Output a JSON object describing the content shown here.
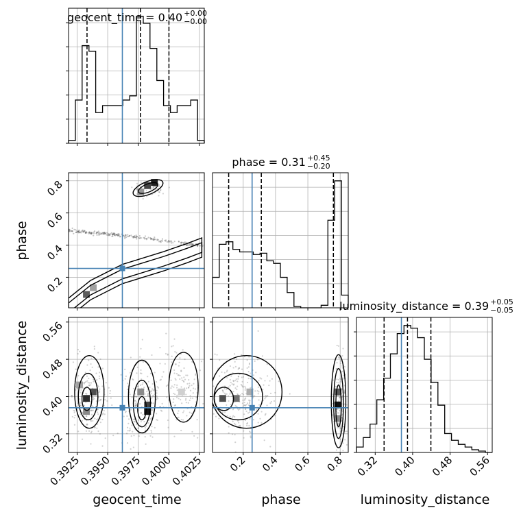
{
  "chart_data": {
    "type": "corner",
    "parameters": [
      "geocent_time",
      "phase",
      "luminosity_distance"
    ],
    "truths": {
      "geocent_time": 0.3962,
      "phase": 0.255,
      "luminosity_distance": 0.376
    },
    "colors": {
      "truth": "#4682b4",
      "hist": "#000000",
      "grid": "#b0b0b0"
    },
    "titles": [
      {
        "param": "geocent_time",
        "text": "geocent_time = 0.40",
        "sup": "+0.00",
        "sub": "−0.00"
      },
      {
        "param": "phase",
        "text": "phase = 0.31",
        "sup": "+0.45",
        "sub": "−0.20"
      },
      {
        "param": "luminosity_distance",
        "text": "luminosity_distance = 0.39",
        "sup": "+0.05",
        "sub": "−0.05"
      }
    ],
    "axes": {
      "geocent_time": {
        "range": [
          0.3918,
          0.4029
        ],
        "ticks": [
          "0.3925",
          "0.3950",
          "0.3975",
          "0.4000",
          "0.4025"
        ],
        "label": "geocent_time"
      },
      "phase": {
        "range": [
          0.01,
          0.85
        ],
        "ticks": [
          "0.2",
          "0.4",
          "0.6",
          "0.8"
        ],
        "label": "phase"
      },
      "luminosity_distance": {
        "range": [
          0.28,
          0.57
        ],
        "ticks": [
          "0.32",
          "0.40",
          "0.48",
          "0.56"
        ],
        "label": "luminosity_distance"
      }
    },
    "histograms": {
      "geocent_time": {
        "edges": [
          0.3918,
          0.39236,
          0.39291,
          0.39347,
          0.39402,
          0.39458,
          0.39513,
          0.39569,
          0.39624,
          0.3968,
          0.39735,
          0.39791,
          0.39846,
          0.39902,
          0.39957,
          0.40013,
          0.40068,
          0.40124,
          0.40179,
          0.40235,
          0.4029
        ],
        "counts": [
          0.02,
          0.31,
          0.7,
          0.66,
          0.22,
          0.27,
          0.27,
          0.27,
          0.31,
          0.34,
          0.91,
          0.86,
          0.68,
          0.45,
          0.27,
          0.22,
          0.27,
          0.27,
          0.31,
          0.02
        ],
        "quantiles": [
          0.39331,
          0.39768,
          0.40001
        ]
      },
      "phase": {
        "edges": [
          0.01,
          0.052,
          0.094,
          0.136,
          0.178,
          0.22,
          0.262,
          0.304,
          0.346,
          0.388,
          0.43,
          0.472,
          0.514,
          0.556,
          0.598,
          0.64,
          0.682,
          0.724,
          0.766,
          0.808,
          0.85
        ],
        "counts": [
          0.24,
          0.5,
          0.52,
          0.46,
          0.44,
          0.44,
          0.42,
          0.43,
          0.37,
          0.35,
          0.24,
          0.12,
          0.01,
          0.0,
          0.0,
          0.0,
          0.02,
          0.69,
          1.0,
          0.1
        ],
        "quantiles": [
          0.11,
          0.312,
          0.758
        ]
      },
      "luminosity_distance": {
        "edges": [
          0.28,
          0.2945,
          0.309,
          0.3235,
          0.338,
          0.3525,
          0.367,
          0.3815,
          0.396,
          0.4105,
          0.425,
          0.4395,
          0.454,
          0.4685,
          0.483,
          0.4975,
          0.512,
          0.5265,
          0.541,
          0.5555,
          0.57
        ],
        "counts": [
          0.04,
          0.11,
          0.21,
          0.39,
          0.55,
          0.73,
          0.88,
          0.94,
          0.92,
          0.85,
          0.69,
          0.52,
          0.35,
          0.14,
          0.09,
          0.06,
          0.04,
          0.02,
          0.01,
          0.0
        ],
        "quantiles": [
          0.339,
          0.389,
          0.439
        ]
      }
    },
    "sample_bands": [
      {
        "pair": [
          "geocent_time",
          "phase"
        ],
        "path": [
          [
            0.3918,
            0.49
          ],
          [
            0.3962,
            0.46
          ],
          [
            0.4029,
            0.395
          ]
        ]
      }
    ],
    "scatter_clusters": [
      {
        "pair": [
          "geocent_time",
          "phase"
        ],
        "center": [
          0.3984,
          0.75
        ],
        "spread": [
          0.0006,
          0.02
        ],
        "n": 80
      },
      {
        "pair": [
          "geocent_time",
          "luminosity_distance"
        ],
        "center": [
          0.3935,
          0.395
        ],
        "spread": [
          0.0008,
          0.045
        ],
        "n": 200
      },
      {
        "pair": [
          "geocent_time",
          "luminosity_distance"
        ],
        "center": [
          0.3978,
          0.39
        ],
        "spread": [
          0.0008,
          0.045
        ],
        "n": 200
      },
      {
        "pair": [
          "geocent_time",
          "luminosity_distance"
        ],
        "center": [
          0.401,
          0.41
        ],
        "spread": [
          0.0009,
          0.05
        ],
        "n": 150
      },
      {
        "pair": [
          "phase",
          "luminosity_distance"
        ],
        "center": [
          0.2,
          0.4
        ],
        "spread": [
          0.1,
          0.045
        ],
        "n": 260
      },
      {
        "pair": [
          "phase",
          "luminosity_distance"
        ],
        "center": [
          0.8,
          0.39
        ],
        "spread": [
          0.02,
          0.05
        ],
        "n": 140
      }
    ],
    "density_cells": [
      {
        "pair": [
          "geocent_time",
          "phase"
        ],
        "x": 0.39326,
        "y": 0.093,
        "v": 0.7
      },
      {
        "pair": [
          "geocent_time",
          "phase"
        ],
        "x": 0.39382,
        "y": 0.135,
        "v": 0.4
      },
      {
        "pair": [
          "geocent_time",
          "phase"
        ],
        "x": 0.39826,
        "y": 0.77,
        "v": 0.8
      },
      {
        "pair": [
          "geocent_time",
          "phase"
        ],
        "x": 0.39882,
        "y": 0.79,
        "v": 0.95
      },
      {
        "pair": [
          "geocent_time",
          "phase"
        ],
        "x": 0.3977,
        "y": 0.73,
        "v": 0.45
      },
      {
        "pair": [
          "geocent_time",
          "luminosity_distance"
        ],
        "x": 0.39326,
        "y": 0.396,
        "v": 0.9
      },
      {
        "pair": [
          "geocent_time",
          "luminosity_distance"
        ],
        "x": 0.39382,
        "y": 0.41,
        "v": 0.75
      },
      {
        "pair": [
          "geocent_time",
          "luminosity_distance"
        ],
        "x": 0.3927,
        "y": 0.425,
        "v": 0.4
      },
      {
        "pair": [
          "geocent_time",
          "luminosity_distance"
        ],
        "x": 0.39326,
        "y": 0.368,
        "v": 0.5
      },
      {
        "pair": [
          "geocent_time",
          "luminosity_distance"
        ],
        "x": 0.39826,
        "y": 0.368,
        "v": 1.0
      },
      {
        "pair": [
          "geocent_time",
          "luminosity_distance"
        ],
        "x": 0.39826,
        "y": 0.382,
        "v": 0.8
      },
      {
        "pair": [
          "geocent_time",
          "luminosity_distance"
        ],
        "x": 0.3977,
        "y": 0.41,
        "v": 0.5
      },
      {
        "pair": [
          "geocent_time",
          "luminosity_distance"
        ],
        "x": 0.40104,
        "y": 0.41,
        "v": 0.2
      },
      {
        "pair": [
          "phase",
          "luminosity_distance"
        ],
        "x": 0.073,
        "y": 0.396,
        "v": 0.75
      },
      {
        "pair": [
          "phase",
          "luminosity_distance"
        ],
        "x": 0.157,
        "y": 0.396,
        "v": 0.6
      },
      {
        "pair": [
          "phase",
          "luminosity_distance"
        ],
        "x": 0.241,
        "y": 0.41,
        "v": 0.35
      },
      {
        "pair": [
          "phase",
          "luminosity_distance"
        ],
        "x": 0.787,
        "y": 0.382,
        "v": 1.0
      },
      {
        "pair": [
          "phase",
          "luminosity_distance"
        ],
        "x": 0.787,
        "y": 0.41,
        "v": 0.7
      },
      {
        "pair": [
          "phase",
          "luminosity_distance"
        ],
        "x": 0.787,
        "y": 0.353,
        "v": 0.5
      }
    ],
    "contours": [
      {
        "pair": [
          "geocent_time",
          "phase"
        ],
        "kind": "band",
        "path": [
          [
            0.3918,
            0.01
          ],
          [
            0.3936,
            0.12
          ],
          [
            0.3962,
            0.22
          ],
          [
            0.3996,
            0.3
          ],
          [
            0.4015,
            0.35
          ],
          [
            0.4027,
            0.385
          ]
        ],
        "width": [
          0.03,
          0.06
        ]
      },
      {
        "pair": [
          "geocent_time",
          "phase"
        ],
        "kind": "ellipse",
        "center": [
          0.3983,
          0.755
        ],
        "rx": 0.0013,
        "ry": 0.04,
        "rot": -22
      },
      {
        "pair": [
          "geocent_time",
          "phase"
        ],
        "kind": "ellipse",
        "center": [
          0.3983,
          0.755
        ],
        "rx": 0.00085,
        "ry": 0.025,
        "rot": -22
      },
      {
        "pair": [
          "geocent_time",
          "luminosity_distance"
        ],
        "kind": "ellipse",
        "center": [
          0.3935,
          0.41
        ],
        "rx": 0.0012,
        "ry": 0.078,
        "rot": 0
      },
      {
        "pair": [
          "geocent_time",
          "luminosity_distance"
        ],
        "kind": "ellipse",
        "center": [
          0.3934,
          0.4
        ],
        "rx": 0.0008,
        "ry": 0.05,
        "rot": 0
      },
      {
        "pair": [
          "geocent_time",
          "luminosity_distance"
        ],
        "kind": "ellipse",
        "center": [
          0.3933,
          0.395
        ],
        "rx": 0.0004,
        "ry": 0.025,
        "rot": 0
      },
      {
        "pair": [
          "geocent_time",
          "luminosity_distance"
        ],
        "kind": "ellipse",
        "center": [
          0.3978,
          0.4
        ],
        "rx": 0.0011,
        "ry": 0.078,
        "rot": 0
      },
      {
        "pair": [
          "geocent_time",
          "luminosity_distance"
        ],
        "kind": "ellipse",
        "center": [
          0.3978,
          0.385
        ],
        "rx": 0.0007,
        "ry": 0.05,
        "rot": 0
      },
      {
        "pair": [
          "geocent_time",
          "luminosity_distance"
        ],
        "kind": "ellipse",
        "center": [
          0.3978,
          0.375
        ],
        "rx": 0.00035,
        "ry": 0.025,
        "rot": 0
      },
      {
        "pair": [
          "geocent_time",
          "luminosity_distance"
        ],
        "kind": "ellipse",
        "center": [
          0.4012,
          0.42
        ],
        "rx": 0.0012,
        "ry": 0.075,
        "rot": 0
      },
      {
        "pair": [
          "phase",
          "luminosity_distance"
        ],
        "kind": "ellipse",
        "center": [
          0.22,
          0.41
        ],
        "rx": 0.22,
        "ry": 0.078,
        "rot": 0
      },
      {
        "pair": [
          "phase",
          "luminosity_distance"
        ],
        "kind": "ellipse",
        "center": [
          0.17,
          0.4
        ],
        "rx": 0.15,
        "ry": 0.05,
        "rot": 0
      },
      {
        "pair": [
          "phase",
          "luminosity_distance"
        ],
        "kind": "ellipse",
        "center": [
          0.08,
          0.395
        ],
        "rx": 0.06,
        "ry": 0.025,
        "rot": 0
      },
      {
        "pair": [
          "phase",
          "luminosity_distance"
        ],
        "kind": "ellipse",
        "center": [
          0.79,
          0.39
        ],
        "rx": 0.045,
        "ry": 0.1,
        "rot": 0
      },
      {
        "pair": [
          "phase",
          "luminosity_distance"
        ],
        "kind": "ellipse",
        "center": [
          0.79,
          0.385
        ],
        "rx": 0.03,
        "ry": 0.075,
        "rot": 0
      },
      {
        "pair": [
          "phase",
          "luminosity_distance"
        ],
        "kind": "ellipse",
        "center": [
          0.79,
          0.38
        ],
        "rx": 0.017,
        "ry": 0.045,
        "rot": 0
      }
    ],
    "grid": true
  }
}
